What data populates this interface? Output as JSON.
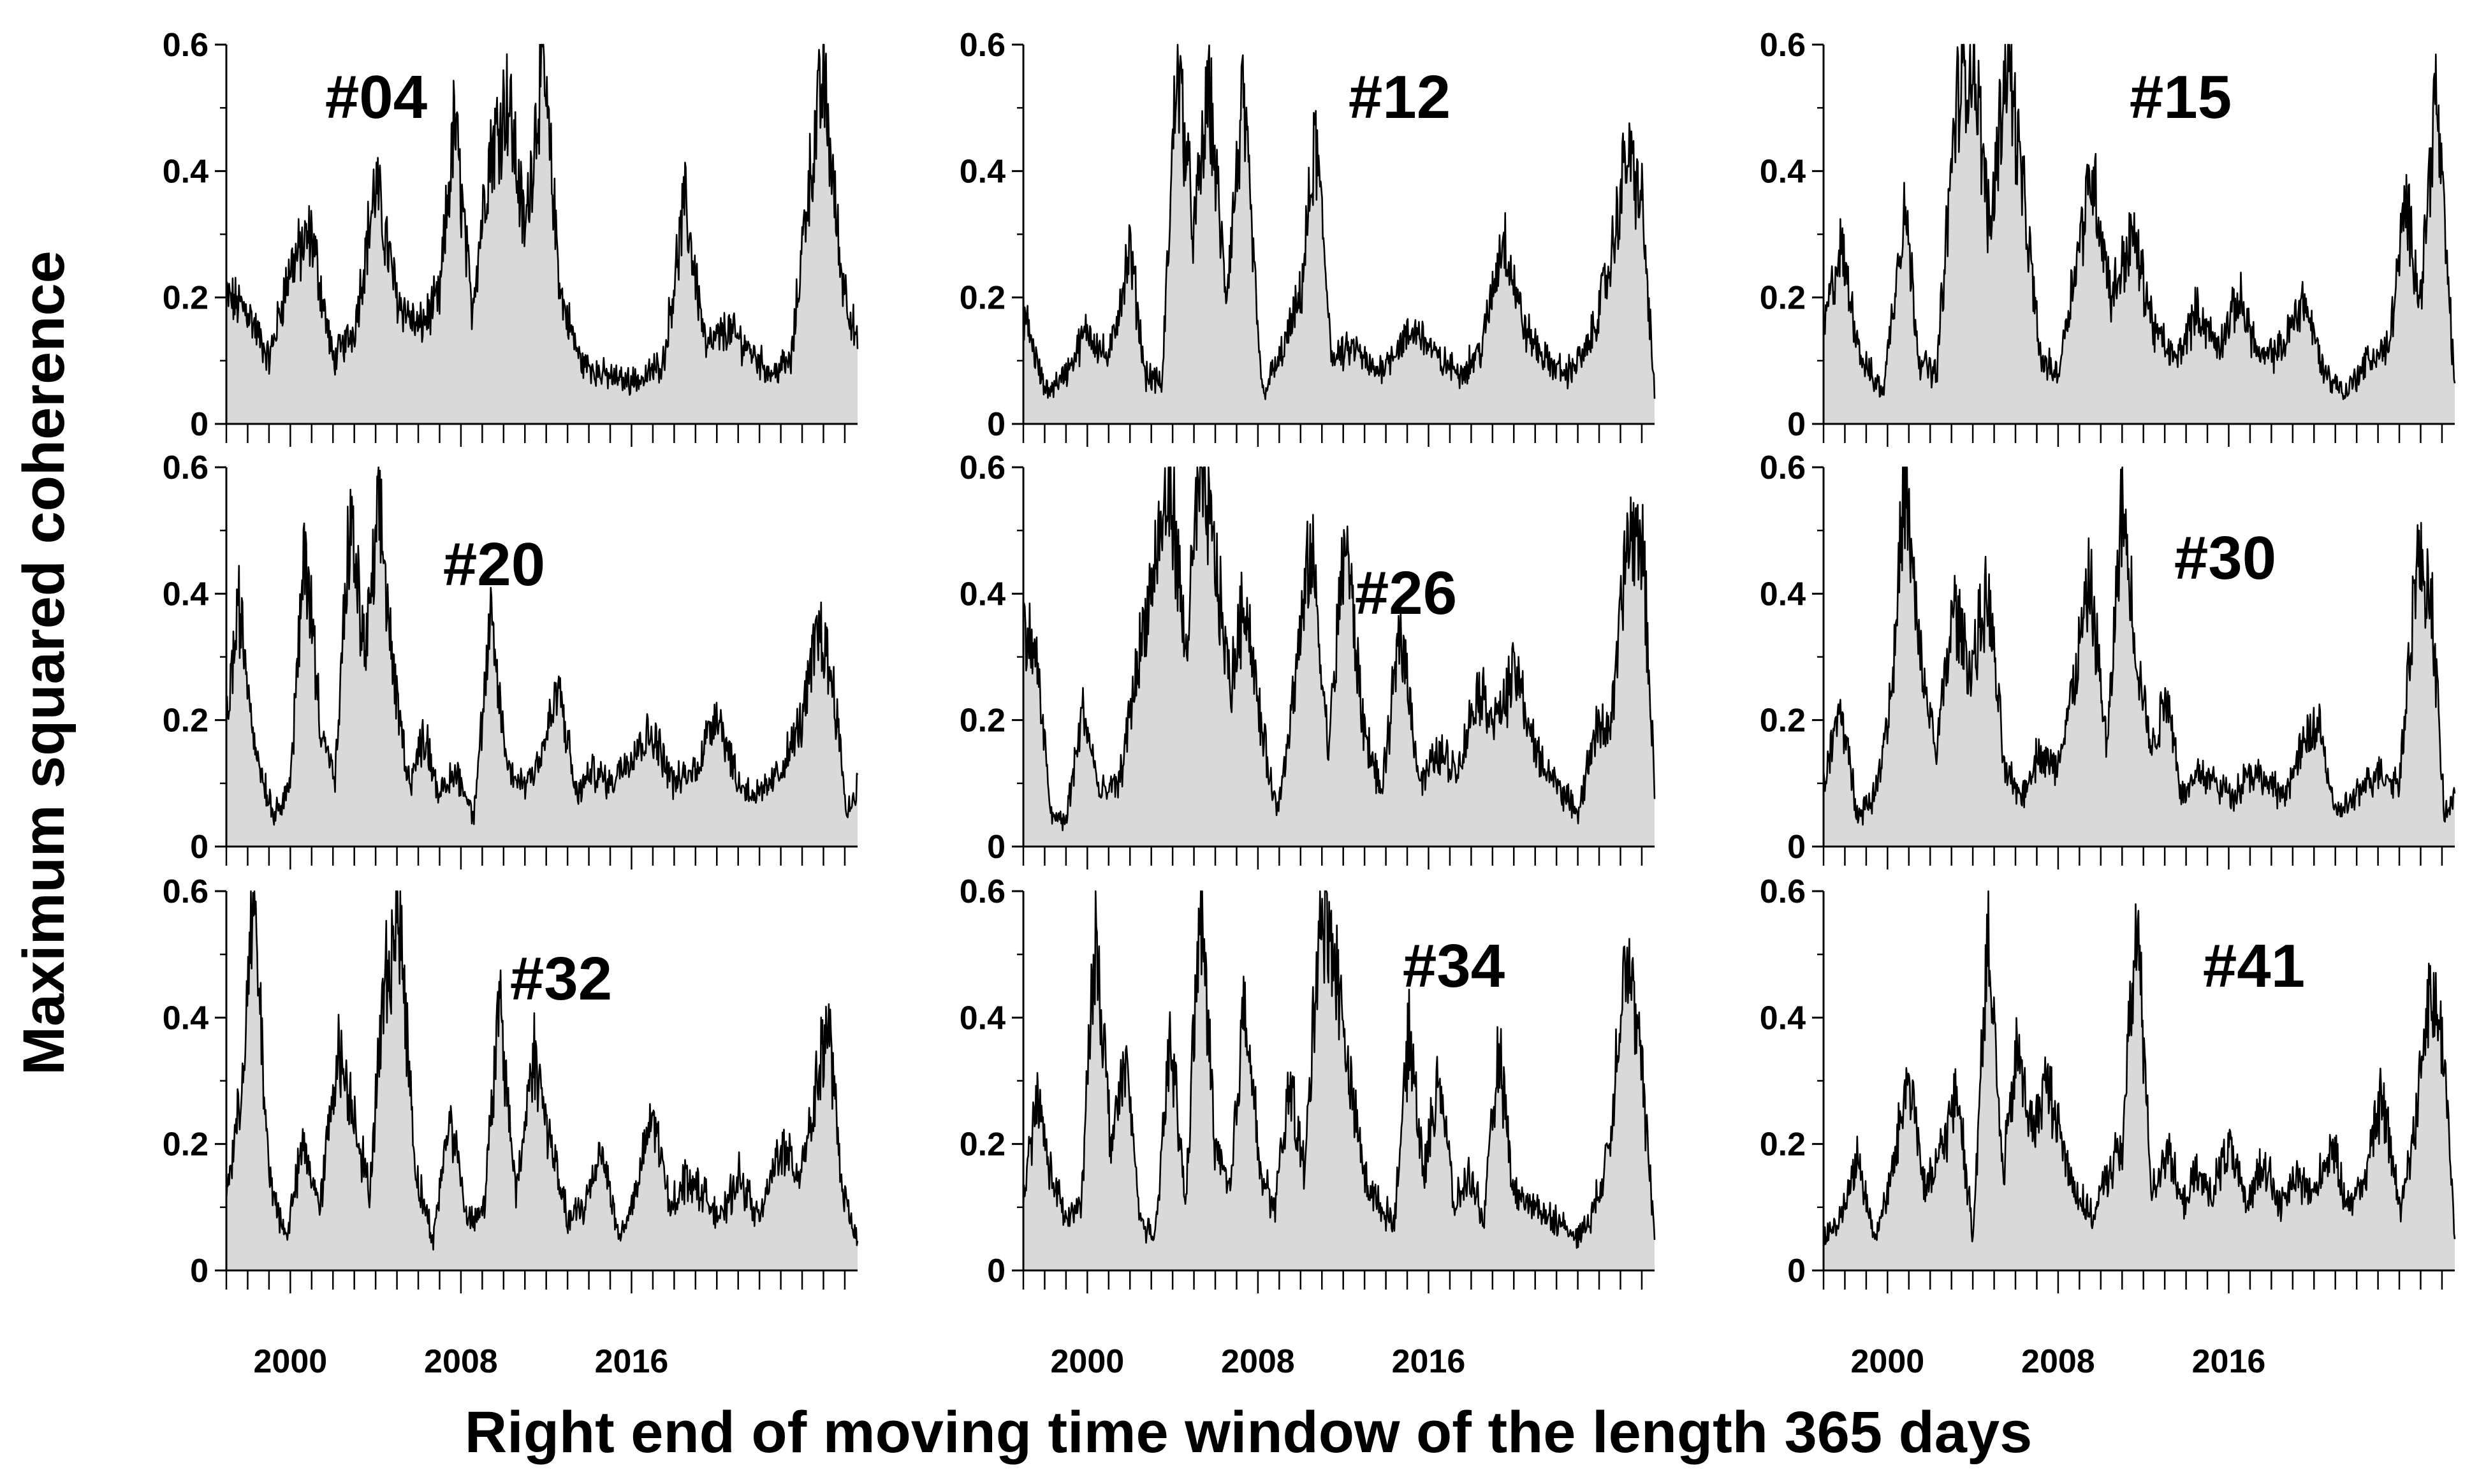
{
  "figure": {
    "ylabel": "Maximum squared coherence",
    "xlabel": "Right end of moving time window of the length 365 days",
    "x_range": [
      1997.0,
      2026.6
    ],
    "y_range": [
      0,
      0.6
    ],
    "yticks": [
      0,
      0.2,
      0.4,
      0.6
    ],
    "ytick_labels": [
      "0",
      "0.2",
      "0.4",
      "0.6"
    ],
    "xticks": [
      2000,
      2008,
      2016
    ],
    "xtick_labels": [
      "2000",
      "2008",
      "2016"
    ],
    "fill_color": "#d9d9d9",
    "line_color": "#000000"
  },
  "chart_data": [
    {
      "type": "area",
      "title": "#04",
      "x_range": [
        1997.0,
        2026.6
      ],
      "ylim": [
        0,
        0.6
      ],
      "x": [
        1997.0,
        1998.0,
        1999.0,
        2000.0,
        2001.0,
        2002.0,
        2003.0,
        2004.0,
        2005.0,
        2006.0,
        2007.0,
        2007.7,
        2008.5,
        2009.3,
        2010.2,
        2011.0,
        2011.8,
        2012.7,
        2013.6,
        2014.5,
        2015.5,
        2016.5,
        2017.5,
        2018.5,
        2019.5,
        2020.5,
        2021.5,
        2022.5,
        2023.5,
        2024.2,
        2025.0,
        2025.8,
        2026.6
      ],
      "values": [
        0.2,
        0.18,
        0.1,
        0.25,
        0.3,
        0.1,
        0.15,
        0.38,
        0.2,
        0.15,
        0.2,
        0.48,
        0.18,
        0.42,
        0.52,
        0.3,
        0.58,
        0.2,
        0.1,
        0.08,
        0.07,
        0.07,
        0.1,
        0.35,
        0.12,
        0.15,
        0.12,
        0.08,
        0.1,
        0.35,
        0.55,
        0.25,
        0.12
      ]
    },
    {
      "type": "area",
      "title": "#12",
      "x_range": [
        1997.0,
        2026.6
      ],
      "ylim": [
        0,
        0.6
      ],
      "x": [
        1997.0,
        1998.0,
        1999.0,
        2000.0,
        2001.0,
        2002.0,
        2002.7,
        2003.5,
        2004.2,
        2005.0,
        2005.7,
        2006.5,
        2007.3,
        2008.2,
        2009.0,
        2010.0,
        2010.7,
        2011.5,
        2012.5,
        2013.5,
        2014.5,
        2015.5,
        2016.5,
        2017.5,
        2018.5,
        2019.5,
        2020.5,
        2021.5,
        2022.5,
        2023.5,
        2024.5,
        2025.3,
        2026.0,
        2026.6
      ],
      "values": [
        0.18,
        0.05,
        0.08,
        0.15,
        0.1,
        0.28,
        0.08,
        0.06,
        0.58,
        0.3,
        0.53,
        0.2,
        0.51,
        0.05,
        0.1,
        0.2,
        0.45,
        0.1,
        0.12,
        0.08,
        0.12,
        0.15,
        0.1,
        0.08,
        0.12,
        0.3,
        0.15,
        0.1,
        0.08,
        0.12,
        0.25,
        0.43,
        0.35,
        0.05
      ]
    },
    {
      "type": "area",
      "title": "#15",
      "x_range": [
        1997.0,
        2026.6
      ],
      "ylim": [
        0,
        0.6
      ],
      "x": [
        1997.0,
        1997.8,
        1998.8,
        1999.8,
        2000.8,
        2001.5,
        2002.3,
        2003.2,
        2004.0,
        2004.8,
        2005.6,
        2006.4,
        2007.2,
        2008.0,
        2008.8,
        2009.6,
        2010.5,
        2011.5,
        2012.5,
        2013.5,
        2014.5,
        2015.5,
        2016.5,
        2017.5,
        2018.5,
        2019.5,
        2020.5,
        2021.5,
        2022.5,
        2023.5,
        2024.3,
        2025.0,
        2025.7,
        2026.6
      ],
      "values": [
        0.15,
        0.28,
        0.1,
        0.05,
        0.35,
        0.1,
        0.08,
        0.5,
        0.6,
        0.3,
        0.6,
        0.35,
        0.1,
        0.08,
        0.25,
        0.4,
        0.2,
        0.3,
        0.15,
        0.1,
        0.18,
        0.12,
        0.2,
        0.1,
        0.12,
        0.2,
        0.08,
        0.05,
        0.1,
        0.12,
        0.35,
        0.2,
        0.53,
        0.06
      ]
    },
    {
      "type": "area",
      "title": "#20",
      "x_range": [
        1997.0,
        2026.6
      ],
      "ylim": [
        0,
        0.6
      ],
      "x": [
        1997.0,
        1997.6,
        1998.4,
        1999.2,
        2000.0,
        2000.7,
        2001.4,
        2002.1,
        2002.8,
        2003.5,
        2004.2,
        2004.9,
        2005.6,
        2006.3,
        2007.0,
        2007.8,
        2008.6,
        2009.4,
        2010.2,
        2011.0,
        2011.8,
        2012.6,
        2013.4,
        2014.2,
        2015.0,
        2016.0,
        2017.0,
        2018.0,
        2019.0,
        2020.0,
        2021.0,
        2022.0,
        2023.0,
        2024.0,
        2024.8,
        2025.5,
        2026.1,
        2026.6
      ],
      "values": [
        0.2,
        0.38,
        0.15,
        0.05,
        0.1,
        0.48,
        0.2,
        0.1,
        0.52,
        0.3,
        0.53,
        0.25,
        0.1,
        0.18,
        0.08,
        0.12,
        0.05,
        0.35,
        0.12,
        0.1,
        0.15,
        0.25,
        0.08,
        0.12,
        0.1,
        0.15,
        0.18,
        0.1,
        0.12,
        0.22,
        0.1,
        0.08,
        0.12,
        0.2,
        0.35,
        0.25,
        0.05,
        0.1
      ]
    },
    {
      "type": "area",
      "title": "#26",
      "x_range": [
        1997.0,
        2026.6
      ],
      "ylim": [
        0,
        0.6
      ],
      "x": [
        1997.0,
        1997.6,
        1998.3,
        1999.0,
        1999.8,
        2000.6,
        2001.5,
        2002.4,
        2003.2,
        2003.9,
        2004.6,
        2005.3,
        2006.0,
        2006.7,
        2007.4,
        2008.1,
        2008.9,
        2009.7,
        2010.5,
        2011.3,
        2012.1,
        2012.9,
        2013.8,
        2014.7,
        2015.6,
        2016.5,
        2017.4,
        2018.3,
        2019.2,
        2020.1,
        2021.0,
        2022.0,
        2023.0,
        2023.8,
        2024.6,
        2025.3,
        2026.0,
        2026.6
      ],
      "values": [
        0.35,
        0.3,
        0.05,
        0.04,
        0.22,
        0.08,
        0.1,
        0.3,
        0.45,
        0.58,
        0.3,
        0.6,
        0.45,
        0.25,
        0.4,
        0.2,
        0.05,
        0.25,
        0.48,
        0.15,
        0.5,
        0.2,
        0.08,
        0.35,
        0.1,
        0.15,
        0.12,
        0.25,
        0.2,
        0.28,
        0.15,
        0.1,
        0.05,
        0.18,
        0.2,
        0.48,
        0.5,
        0.1
      ]
    },
    {
      "type": "area",
      "title": "#30",
      "x_range": [
        1997.0,
        2026.6
      ],
      "ylim": [
        0,
        0.6
      ],
      "x": [
        1997.0,
        1997.8,
        1998.6,
        1999.4,
        2000.2,
        2000.8,
        2001.5,
        2002.3,
        2003.1,
        2003.9,
        2004.7,
        2005.5,
        2006.3,
        2007.1,
        2007.9,
        2008.7,
        2009.5,
        2010.3,
        2011.0,
        2011.7,
        2012.4,
        2013.1,
        2013.8,
        2014.6,
        2015.4,
        2016.2,
        2017.0,
        2017.8,
        2018.6,
        2019.4,
        2020.2,
        2021.0,
        2022.0,
        2023.0,
        2024.0,
        2024.8,
        2025.5,
        2026.1,
        2026.6
      ],
      "values": [
        0.1,
        0.22,
        0.05,
        0.08,
        0.25,
        0.58,
        0.3,
        0.15,
        0.38,
        0.28,
        0.4,
        0.12,
        0.08,
        0.15,
        0.12,
        0.25,
        0.42,
        0.15,
        0.55,
        0.3,
        0.15,
        0.25,
        0.08,
        0.12,
        0.1,
        0.08,
        0.12,
        0.1,
        0.08,
        0.15,
        0.2,
        0.05,
        0.08,
        0.12,
        0.1,
        0.45,
        0.4,
        0.05,
        0.08
      ]
    },
    {
      "type": "area",
      "title": "#32",
      "x_range": [
        1997.0,
        2026.6
      ],
      "ylim": [
        0,
        0.6
      ],
      "x": [
        1997.0,
        1997.6,
        1998.3,
        1999.0,
        1999.8,
        2000.6,
        2001.4,
        2002.2,
        2003.0,
        2003.7,
        2004.4,
        2005.1,
        2005.9,
        2006.7,
        2007.5,
        2008.3,
        2009.1,
        2009.8,
        2010.6,
        2011.4,
        2012.2,
        2013.0,
        2013.8,
        2014.6,
        2015.4,
        2016.2,
        2017.0,
        2017.8,
        2018.6,
        2019.4,
        2020.2,
        2021.0,
        2022.0,
        2023.0,
        2023.8,
        2024.5,
        2025.2,
        2025.9,
        2026.6
      ],
      "values": [
        0.12,
        0.25,
        0.58,
        0.15,
        0.05,
        0.2,
        0.1,
        0.35,
        0.25,
        0.12,
        0.45,
        0.57,
        0.15,
        0.05,
        0.25,
        0.08,
        0.1,
        0.42,
        0.12,
        0.35,
        0.2,
        0.08,
        0.1,
        0.2,
        0.05,
        0.12,
        0.25,
        0.1,
        0.15,
        0.12,
        0.08,
        0.15,
        0.08,
        0.2,
        0.15,
        0.25,
        0.4,
        0.12,
        0.05
      ]
    },
    {
      "type": "area",
      "title": "#34",
      "x_range": [
        1997.0,
        2026.6
      ],
      "ylim": [
        0,
        0.6
      ],
      "x": [
        1997.0,
        1997.6,
        1998.3,
        1999.0,
        1999.7,
        2000.4,
        2001.1,
        2001.8,
        2002.5,
        2003.2,
        2003.9,
        2004.6,
        2005.3,
        2006.0,
        2006.7,
        2007.4,
        2008.1,
        2008.8,
        2009.5,
        2010.2,
        2010.9,
        2011.6,
        2012.3,
        2013.0,
        2013.7,
        2014.4,
        2015.1,
        2015.8,
        2016.5,
        2017.2,
        2017.9,
        2018.6,
        2019.3,
        2020.0,
        2021.0,
        2022.0,
        2023.0,
        2023.8,
        2024.5,
        2025.2,
        2025.9,
        2026.6
      ],
      "values": [
        0.1,
        0.28,
        0.15,
        0.08,
        0.1,
        0.55,
        0.2,
        0.33,
        0.08,
        0.05,
        0.38,
        0.1,
        0.58,
        0.2,
        0.12,
        0.45,
        0.15,
        0.1,
        0.3,
        0.15,
        0.58,
        0.5,
        0.3,
        0.15,
        0.1,
        0.08,
        0.38,
        0.15,
        0.32,
        0.1,
        0.15,
        0.08,
        0.35,
        0.12,
        0.1,
        0.08,
        0.05,
        0.1,
        0.2,
        0.52,
        0.35,
        0.06
      ]
    },
    {
      "type": "area",
      "title": "#41",
      "x_range": [
        1997.0,
        2026.6
      ],
      "ylim": [
        0,
        0.6
      ],
      "x": [
        1997.0,
        1997.8,
        1998.6,
        1999.4,
        2000.2,
        2001.0,
        2001.8,
        2002.6,
        2003.3,
        2004.0,
        2004.7,
        2005.4,
        2006.1,
        2006.8,
        2007.5,
        2008.2,
        2008.9,
        2009.6,
        2010.3,
        2011.0,
        2011.7,
        2012.4,
        2013.1,
        2013.8,
        2014.5,
        2015.2,
        2016.0,
        2016.8,
        2017.6,
        2018.4,
        2019.2,
        2020.0,
        2020.8,
        2021.6,
        2022.4,
        2023.2,
        2024.0,
        2024.7,
        2025.4,
        2026.1,
        2026.6
      ],
      "values": [
        0.05,
        0.08,
        0.18,
        0.05,
        0.15,
        0.32,
        0.12,
        0.2,
        0.28,
        0.05,
        0.55,
        0.15,
        0.35,
        0.22,
        0.3,
        0.2,
        0.12,
        0.08,
        0.15,
        0.2,
        0.55,
        0.12,
        0.2,
        0.1,
        0.15,
        0.12,
        0.2,
        0.1,
        0.18,
        0.1,
        0.15,
        0.12,
        0.2,
        0.1,
        0.15,
        0.28,
        0.1,
        0.22,
        0.45,
        0.35,
        0.05
      ]
    }
  ]
}
